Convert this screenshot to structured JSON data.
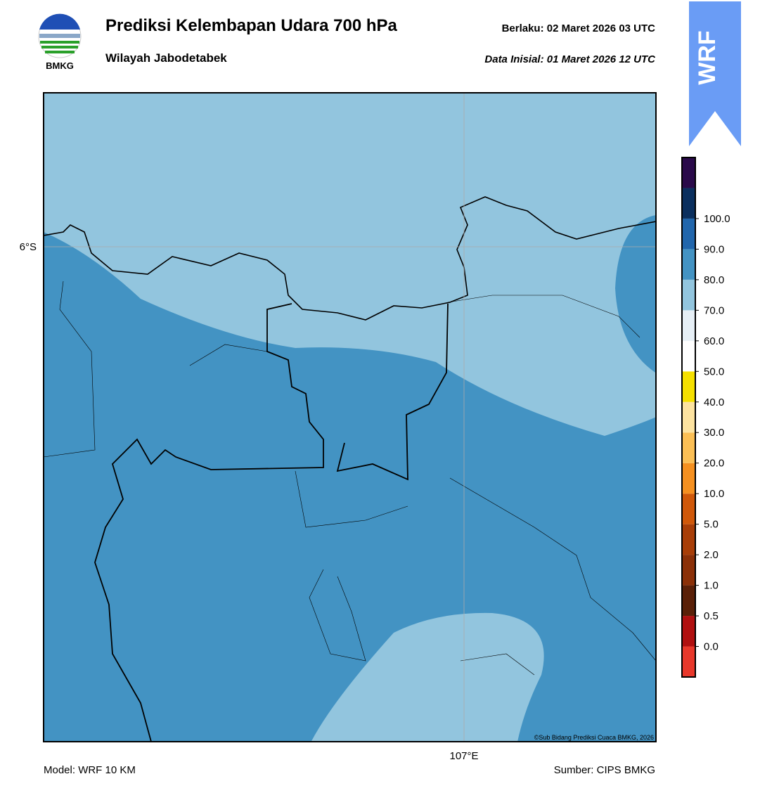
{
  "header": {
    "logo_text": "BMKG",
    "title": "Prediksi Kelembapan Udara 700 hPa",
    "subtitle": "Wilayah Jabodetabek",
    "valid": "Berlaku:  02 Maret 2026 03 UTC",
    "init": "Data Inisial:  01 Maret 2026 12 UTC",
    "model_badge": "WRF"
  },
  "map": {
    "lat_label": "6°S",
    "lon_label": "107°E",
    "credit": "©Sub Bidang Prediksi Cuaca BMKG, 2026"
  },
  "colorbar": {
    "colors": [
      "#e8382b",
      "#b01010",
      "#5a2008",
      "#8b3008",
      "#a83e08",
      "#d0580a",
      "#f59020",
      "#fbbf55",
      "#fde3a0",
      "#f5e000",
      "#ffffff",
      "#e6eff6",
      "#92c5de",
      "#4393c3",
      "#2166ac",
      "#0b2f5e",
      "#2a0a4a"
    ],
    "ticks": [
      {
        "value": 0,
        "label": "0.0"
      },
      {
        "value": 0.5,
        "label": "0.5"
      },
      {
        "value": 1,
        "label": "1.0"
      },
      {
        "value": 2,
        "label": "2.0"
      },
      {
        "value": 5,
        "label": "5.0"
      },
      {
        "value": 10,
        "label": "10.0"
      },
      {
        "value": 20,
        "label": "20.0"
      },
      {
        "value": 30,
        "label": "30.0"
      },
      {
        "value": 40,
        "label": "40.0"
      },
      {
        "value": 50,
        "label": "50.0"
      },
      {
        "value": 60,
        "label": "60.0"
      },
      {
        "value": 70,
        "label": "70.0"
      },
      {
        "value": 80,
        "label": "80.0"
      },
      {
        "value": 90,
        "label": "90.0"
      },
      {
        "value": 100,
        "label": "100.0"
      }
    ]
  },
  "footer": {
    "model": "Model: WRF 10 KM",
    "source": "Sumber: CIPS BMKG"
  }
}
